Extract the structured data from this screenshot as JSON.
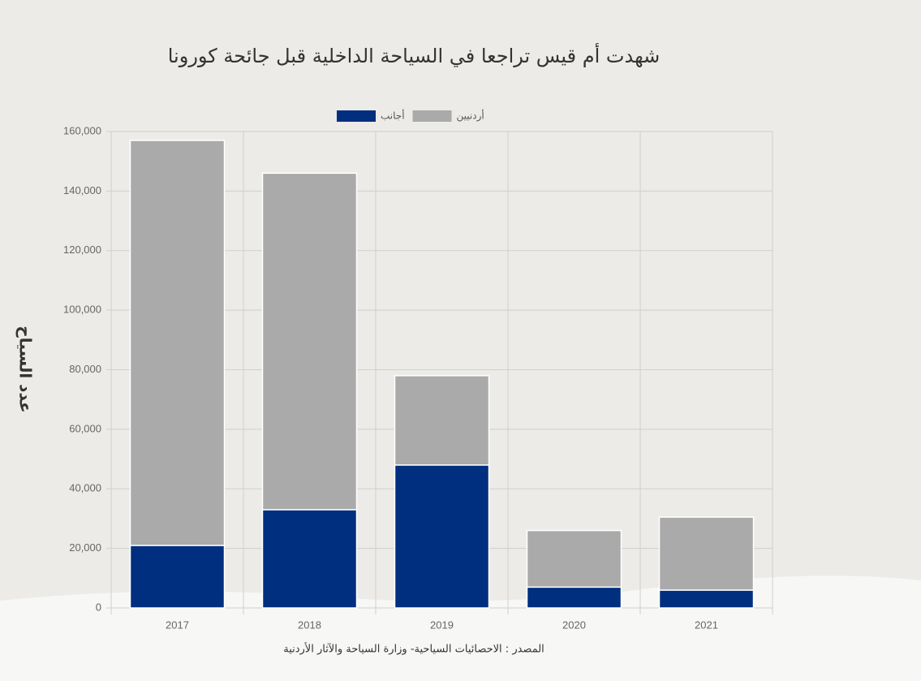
{
  "chart_data": {
    "type": "stacked_bar",
    "title": "شهدت أم قيس تراجعا في السياحة الداخلية قبل جائحة كورونا",
    "y_label": "عدد السياح",
    "source": "المصدر : الاحصائيات السياحية- وزارة السياحة والآثار الأردنية",
    "categories": [
      "2017",
      "2018",
      "2019",
      "2020",
      "2021"
    ],
    "series": [
      {
        "name": "أجانب",
        "color": "#002f7f",
        "values": [
          21000,
          33000,
          48000,
          7000,
          6000
        ]
      },
      {
        "name": "أردنيين",
        "color": "#aaaaaa",
        "values": [
          136000,
          113000,
          30000,
          19000,
          24500
        ]
      }
    ],
    "ylim": [
      0,
      160000
    ],
    "yticks": [
      0,
      {
        "value": 20000,
        "label": "20,000"
      },
      {
        "value": 40000,
        "label": "40,000"
      },
      {
        "value": 60000,
        "label": "60,000"
      },
      {
        "value": 80000,
        "label": "80,000"
      },
      {
        "value": 100000,
        "label": "100,000"
      },
      {
        "value": 120000,
        "label": "120,000"
      },
      {
        "value": 140000,
        "label": "140,000"
      },
      {
        "value": 160000,
        "label": "160,000"
      }
    ],
    "grid": true
  }
}
